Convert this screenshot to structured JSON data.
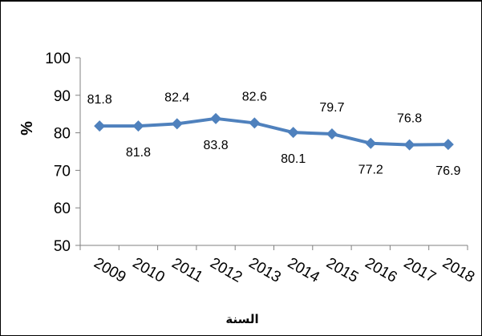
{
  "chart_data": {
    "type": "line",
    "title": "",
    "xlabel": "السنة",
    "ylabel": "%",
    "categories": [
      "2009",
      "2010",
      "2011",
      "2012",
      "2013",
      "2014",
      "2015",
      "2016",
      "2017",
      "2018"
    ],
    "series": [
      {
        "values": [
          81.8,
          81.8,
          82.4,
          83.8,
          82.6,
          80.1,
          79.7,
          77.2,
          76.8,
          76.9
        ],
        "labels": [
          "81.8",
          "81.8",
          "82.4",
          "83.8",
          "82.6",
          "80.1",
          "79.7",
          "77.2",
          "76.8",
          "76.9"
        ],
        "label_positions": [
          "above",
          "below",
          "above",
          "below",
          "above",
          "below",
          "above",
          "below",
          "above",
          "below"
        ]
      }
    ],
    "ylim": [
      50,
      100
    ],
    "yticks": [
      "50",
      "60",
      "70",
      "80",
      "90",
      "100"
    ],
    "grid": false,
    "legend": "none",
    "colors": {
      "line": "#4F81BD",
      "marker": "#4F81BD",
      "axis": "#808080"
    }
  }
}
